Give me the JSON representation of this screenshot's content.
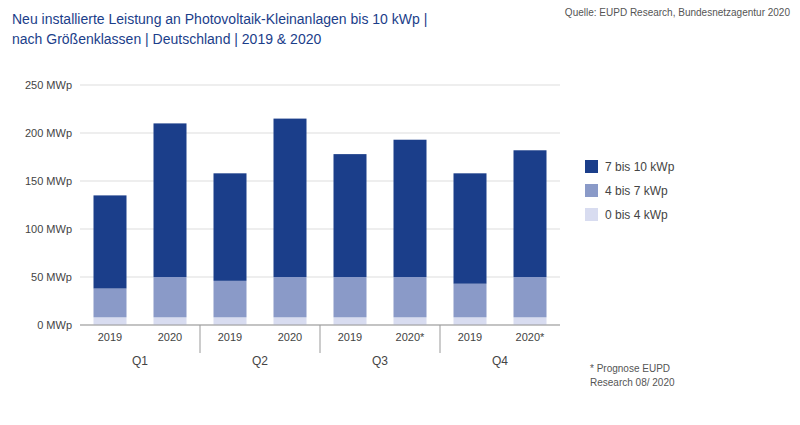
{
  "chart_data": {
    "type": "bar",
    "stacked": true,
    "title": "Neu installierte Leistung an Photovoltaik-Kleinanlagen bis 10 kWp |",
    "subtitle": "nach Größenklassen | Deutschland | 2019 & 2020",
    "annotations": [
      "Quelle: EUPD Research, Bundesnetzagentur 2020",
      "* Prognose EUPD\nResearch 08/ 2020"
    ],
    "groups": [
      "Q1",
      "Q2",
      "Q3",
      "Q4"
    ],
    "categories": [
      "2019",
      "2020",
      "2019",
      "2020",
      "2019",
      "2020*",
      "2019",
      "2020*"
    ],
    "series": [
      {
        "name": "0 bis 4 kWp",
        "color": "#D8DCF0",
        "values": [
          8,
          8,
          8,
          8,
          8,
          8,
          8,
          8
        ]
      },
      {
        "name": "4 bis 7 kWp",
        "color": "#8A9AC8",
        "values": [
          30,
          42,
          38,
          42,
          42,
          42,
          35,
          42
        ]
      },
      {
        "name": "7 bis 10 kWp",
        "color": "#1B3E8A",
        "values": [
          97,
          160,
          112,
          165,
          128,
          143,
          115,
          132
        ]
      }
    ],
    "ylim": [
      0,
      250
    ],
    "yticks": [
      {
        "value": 0,
        "label": "0 MWp"
      },
      {
        "value": 50,
        "label": "50 MWp"
      },
      {
        "value": 100,
        "label": "100 MWp"
      },
      {
        "value": 150,
        "label": "150 MWp"
      },
      {
        "value": 200,
        "label": "200 MWp"
      },
      {
        "value": 250,
        "label": "250 MWp"
      }
    ],
    "grid": true,
    "legend": "right"
  }
}
